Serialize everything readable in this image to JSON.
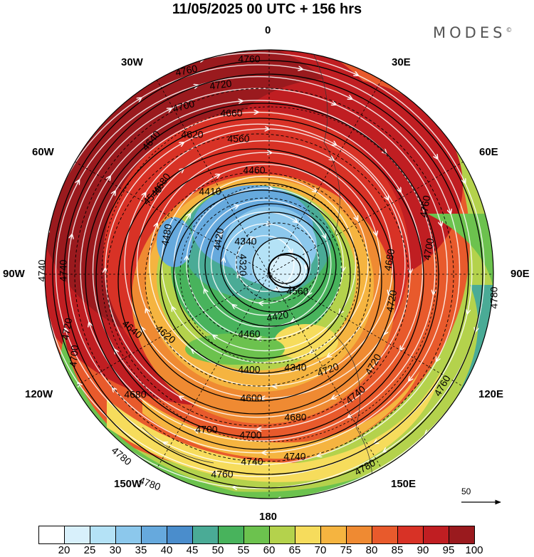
{
  "title": "11/05/2025  00 UTC  + 156 hrs",
  "brand": "MODES",
  "brand_mark": "©",
  "longitude_labels": [
    "0",
    "30E",
    "60E",
    "90E",
    "120E",
    "150E",
    "180",
    "150W",
    "120W",
    "90W",
    "60W",
    "30W"
  ],
  "reference_vector": {
    "label": "50"
  },
  "colorbar": {
    "labels": [
      "20",
      "25",
      "30",
      "35",
      "40",
      "45",
      "50",
      "55",
      "60",
      "65",
      "70",
      "75",
      "80",
      "85",
      "90",
      "95",
      "100"
    ],
    "colors": [
      "#ffffff",
      "#d8f0fb",
      "#b4e2f6",
      "#8cc8ec",
      "#66a9dd",
      "#4a8dcc",
      "#4aab96",
      "#48b35c",
      "#6cc24e",
      "#b4d24c",
      "#f6dc5c",
      "#f5b440",
      "#ef8a32",
      "#e85a2c",
      "#d83226",
      "#c01e22",
      "#9a1a1e"
    ]
  },
  "contours": {
    "labels": [
      "4760",
      "4760",
      "4720",
      "4700",
      "4660",
      "4620",
      "4560",
      "4460",
      "4410",
      "4340",
      "4320",
      "4640",
      "4680",
      "4540",
      "4480",
      "4420",
      "4740",
      "4740",
      "4720",
      "4700",
      "4680",
      "4640",
      "4620",
      "4560",
      "4460",
      "4420",
      "4400",
      "4340",
      "4600",
      "4680",
      "4700",
      "4700",
      "4740",
      "4740",
      "4780",
      "4780",
      "4760",
      "4780",
      "4720",
      "4720",
      "4760",
      "4780",
      "4700",
      "4680",
      "4740",
      "4720",
      "4760"
    ]
  }
}
